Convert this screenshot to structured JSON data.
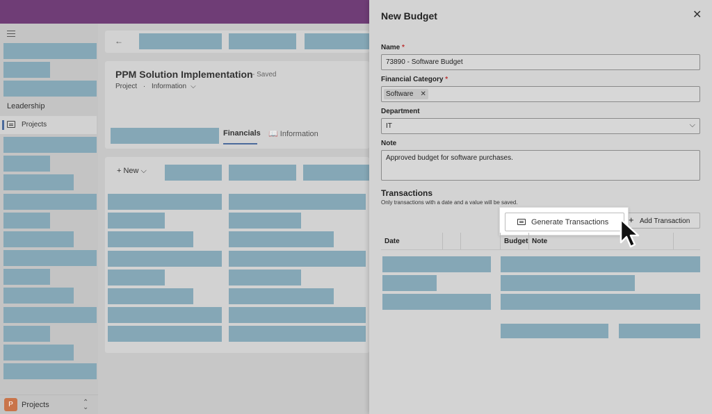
{
  "sidebar": {
    "section_label": "Leadership",
    "active_item": "Projects",
    "footer": {
      "badge": "P",
      "label": "Projects",
      "chevron": "⌃⌄"
    }
  },
  "record": {
    "back_icon": "←",
    "title": "PPM Solution Implementation",
    "status": "- Saved",
    "entity": "Project",
    "separator": "·",
    "form": "Information",
    "form_chevron": "⌵",
    "tabs": {
      "financials": "Financials",
      "information": "Information"
    },
    "new_label": "+ New ⌵"
  },
  "panel": {
    "title": "New Budget",
    "close_icon": "✕",
    "required_mark": "*",
    "name": {
      "label": "Name",
      "value": "73890 - Software Budget"
    },
    "financial_category": {
      "label": "Financial Category",
      "chip": "Software",
      "chip_remove": "✕"
    },
    "department": {
      "label": "Department",
      "value": "IT",
      "chevron": "⌵"
    },
    "note": {
      "label": "Note",
      "value": "Approved budget for software purchases."
    },
    "transactions": {
      "title": "Transactions",
      "hint": "Only transactions with a date and a value will be saved.",
      "generate_label": "Generate Transactions",
      "add_label": "Add Transaction",
      "add_icon": "+",
      "columns": [
        "Date",
        "Budget",
        "Note"
      ]
    }
  },
  "colors": {
    "header": "#6f3d76",
    "placeholder": "#85a7b6",
    "accent": "#4b6a9b"
  }
}
